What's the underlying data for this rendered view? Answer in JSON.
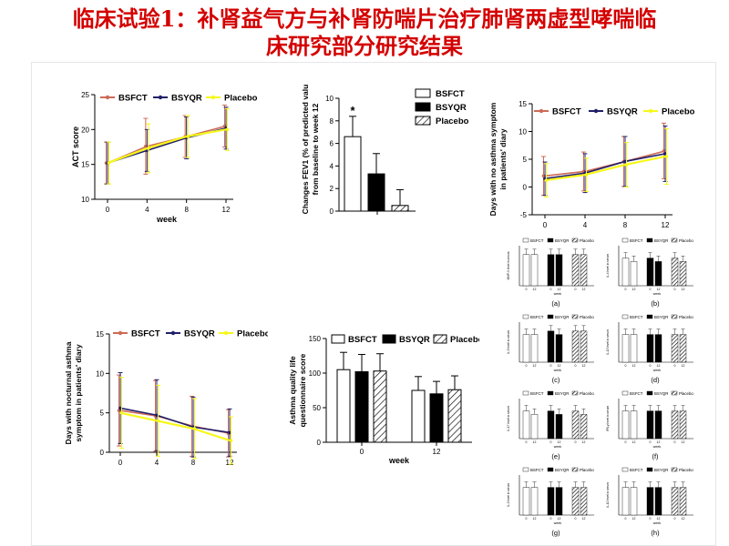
{
  "slide": {
    "title_line1": "临床试验1：补肾益气方与补肾防喘片治疗肺肾两虚型哮喘临",
    "title_line2": "床研究部分研究结果"
  },
  "colors": {
    "BSFCT": "#cd6a55",
    "BSYQR": "#1f1f6b",
    "Placebo": "#f7f71a",
    "title": "#d40000"
  },
  "chart_data": [
    {
      "id": "act",
      "type": "line",
      "ylabel": "ACT score",
      "xlabel": "week",
      "x": [
        0,
        4,
        8,
        12
      ],
      "ylim": [
        10,
        25
      ],
      "yticks": [
        10,
        15,
        20,
        25
      ],
      "legend": [
        "BSFCT",
        "BSYQR",
        "Placebo"
      ],
      "series": [
        {
          "name": "BSFCT",
          "values": [
            15.2,
            17.6,
            19.0,
            20.5
          ],
          "err": [
            3.0,
            4.0,
            3.0,
            3.0
          ]
        },
        {
          "name": "BSYQR",
          "values": [
            15.2,
            17.0,
            18.8,
            20.2
          ],
          "err": [
            3.0,
            3.0,
            3.0,
            3.0
          ]
        },
        {
          "name": "Placebo",
          "values": [
            15.2,
            17.3,
            19.0,
            20.0
          ],
          "err": [
            3.0,
            3.5,
            3.0,
            3.0
          ]
        }
      ]
    },
    {
      "id": "fev1",
      "type": "bar",
      "ylabel_lines": [
        "Changes FEV1 (% of predicted valu",
        "from baseline to week 12"
      ],
      "ylim": [
        0,
        10
      ],
      "yticks": [
        0,
        2,
        4,
        6,
        8,
        10
      ],
      "categories": [
        "BSFCT",
        "BSYQR",
        "Placebo"
      ],
      "values": [
        6.6,
        3.3,
        0.5
      ],
      "err": [
        1.8,
        1.8,
        1.4
      ],
      "annotation": "*"
    },
    {
      "id": "no-symptom",
      "type": "line",
      "ylabel_lines": [
        "Days with no asthma symptom",
        "in patients' diary"
      ],
      "xlabel": "week",
      "x": [
        0,
        4,
        8,
        12
      ],
      "ylim": [
        -5,
        15
      ],
      "yticks": [
        -5,
        0,
        5,
        10,
        15
      ],
      "legend": [
        "BSFCT",
        "BSYQR",
        "Placebo"
      ],
      "series": [
        {
          "name": "BSFCT",
          "values": [
            2.0,
            2.8,
            4.6,
            6.5
          ],
          "err": [
            3.5,
            3.5,
            4.5,
            5.0
          ]
        },
        {
          "name": "BSYQR",
          "values": [
            1.5,
            2.5,
            4.6,
            6.0
          ],
          "err": [
            3.0,
            3.5,
            4.5,
            5.0
          ]
        },
        {
          "name": "Placebo",
          "values": [
            1.2,
            2.2,
            4.0,
            5.5
          ],
          "err": [
            3.0,
            3.0,
            4.0,
            5.0
          ]
        }
      ]
    },
    {
      "id": "nocturnal",
      "type": "line",
      "ylabel_lines": [
        "Days with nocturnal asthma",
        "symptom in patients' diary"
      ],
      "xlabel": "week",
      "x": [
        0,
        4,
        8,
        12
      ],
      "ylim": [
        0,
        15
      ],
      "yticks": [
        0,
        5,
        10,
        15
      ],
      "legend": [
        "BSFCT",
        "BSYQR",
        "Placebo"
      ],
      "series": [
        {
          "name": "BSFCT",
          "values": [
            5.3,
            4.6,
            3.3,
            2.4
          ],
          "err": [
            4.5,
            4.5,
            3.8,
            3.0
          ]
        },
        {
          "name": "BSYQR",
          "values": [
            5.6,
            4.7,
            3.2,
            2.5
          ],
          "err": [
            4.5,
            4.5,
            3.8,
            3.0
          ]
        },
        {
          "name": "Placebo",
          "values": [
            5.0,
            4.0,
            3.0,
            1.5
          ],
          "err": [
            4.5,
            4.5,
            3.8,
            3.0
          ]
        }
      ]
    },
    {
      "id": "aqlq",
      "type": "bar",
      "ylabel_lines": [
        "Asthma quality life",
        "questionnaire score"
      ],
      "xlabel": "week",
      "ylim": [
        0,
        150
      ],
      "yticks": [
        0,
        50,
        100,
        150
      ],
      "categories": [
        "0",
        "12"
      ],
      "legend": [
        "BSFCT",
        "BSYQR",
        "Placebo"
      ],
      "series": [
        {
          "name": "BSFCT",
          "values": [
            105,
            75
          ],
          "err": [
            25,
            20
          ]
        },
        {
          "name": "BSYQR",
          "values": [
            102,
            70
          ],
          "err": [
            25,
            18
          ]
        },
        {
          "name": "Placebo",
          "values": [
            103,
            76
          ],
          "err": [
            25,
            20
          ]
        }
      ]
    }
  ],
  "small_panels": {
    "legend": [
      "BSFCT",
      "BSYQR",
      "Placebo"
    ],
    "xlabel": "week",
    "ticks": [
      "0",
      "12",
      "0",
      "12",
      "0",
      "12"
    ],
    "items": [
      {
        "label": "(a)",
        "ylabel": "MMP-9 level in serum",
        "values": [
          9,
          9,
          9,
          9,
          9,
          9
        ]
      },
      {
        "label": "(b)",
        "ylabel": "IL-4 level in serum",
        "values": [
          8,
          7,
          8,
          7,
          8,
          7
        ]
      },
      {
        "label": "(c)",
        "ylabel": "IL-5 level in serum",
        "values": [
          8,
          8,
          9,
          8,
          9,
          9
        ]
      },
      {
        "label": "(d)",
        "ylabel": "IL-13 level in serum",
        "values": [
          8,
          8,
          8,
          8,
          8,
          8
        ]
      },
      {
        "label": "(e)",
        "ylabel": "IL-17 level in serum",
        "values": [
          8,
          7,
          8,
          7,
          8,
          7
        ]
      },
      {
        "label": "(f)",
        "ylabel": "IFN-γ level in serum",
        "values": [
          8,
          8,
          8,
          8,
          8,
          8
        ]
      },
      {
        "label": "(g)",
        "ylabel": "IL-2 level in serum",
        "values": [
          8,
          8,
          8,
          8,
          8,
          8
        ]
      },
      {
        "label": "(h)",
        "ylabel": "IL-10 level in serum",
        "values": [
          8,
          8,
          8,
          8,
          8,
          8
        ]
      }
    ]
  }
}
